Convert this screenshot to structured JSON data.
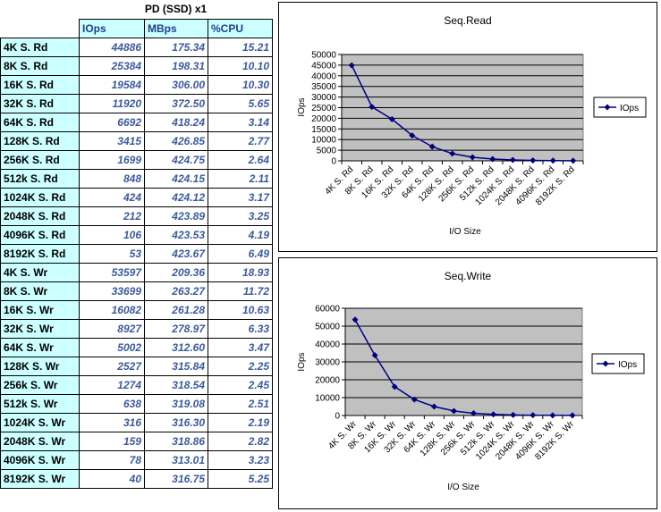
{
  "table": {
    "caption": "PD (SSD) x1",
    "headers": [
      "IOps",
      "MBps",
      "%CPU"
    ],
    "rows": [
      {
        "label": "4K S. Rd",
        "iops": "44886",
        "mbps": "175.34",
        "cpu": "15.21"
      },
      {
        "label": "8K S. Rd",
        "iops": "25384",
        "mbps": "198.31",
        "cpu": "10.10"
      },
      {
        "label": "16K S. Rd",
        "iops": "19584",
        "mbps": "306.00",
        "cpu": "10.30"
      },
      {
        "label": "32K S. Rd",
        "iops": "11920",
        "mbps": "372.50",
        "cpu": "5.65"
      },
      {
        "label": "64K S. Rd",
        "iops": "6692",
        "mbps": "418.24",
        "cpu": "3.14"
      },
      {
        "label": "128K S. Rd",
        "iops": "3415",
        "mbps": "426.85",
        "cpu": "2.77"
      },
      {
        "label": "256K S. Rd",
        "iops": "1699",
        "mbps": "424.75",
        "cpu": "2.64"
      },
      {
        "label": "512k S. Rd",
        "iops": "848",
        "mbps": "424.15",
        "cpu": "2.11"
      },
      {
        "label": "1024K S. Rd",
        "iops": "424",
        "mbps": "424.12",
        "cpu": "3.17"
      },
      {
        "label": "2048K S. Rd",
        "iops": "212",
        "mbps": "423.89",
        "cpu": "3.25"
      },
      {
        "label": "4096K S. Rd",
        "iops": "106",
        "mbps": "423.53",
        "cpu": "4.19"
      },
      {
        "label": "8192K S. Rd",
        "iops": "53",
        "mbps": "423.67",
        "cpu": "6.49"
      },
      {
        "label": "4K S. Wr",
        "iops": "53597",
        "mbps": "209.36",
        "cpu": "18.93"
      },
      {
        "label": "8K S. Wr",
        "iops": "33699",
        "mbps": "263.27",
        "cpu": "11.72"
      },
      {
        "label": "16K S. Wr",
        "iops": "16082",
        "mbps": "261.28",
        "cpu": "10.63"
      },
      {
        "label": "32K S. Wr",
        "iops": "8927",
        "mbps": "278.97",
        "cpu": "6.33"
      },
      {
        "label": "64K S. Wr",
        "iops": "5002",
        "mbps": "312.60",
        "cpu": "3.47"
      },
      {
        "label": "128K S. Wr",
        "iops": "2527",
        "mbps": "315.84",
        "cpu": "2.25"
      },
      {
        "label": "256k S. Wr",
        "iops": "1274",
        "mbps": "318.54",
        "cpu": "2.45"
      },
      {
        "label": "512k S. Wr",
        "iops": "638",
        "mbps": "319.08",
        "cpu": "2.51"
      },
      {
        "label": "1024K S. Wr",
        "iops": "316",
        "mbps": "316.30",
        "cpu": "2.19"
      },
      {
        "label": "2048K S. Wr",
        "iops": "159",
        "mbps": "318.86",
        "cpu": "2.82"
      },
      {
        "label": "4096K S. Wr",
        "iops": "78",
        "mbps": "313.01",
        "cpu": "3.23"
      },
      {
        "label": "8192K S. Wr",
        "iops": "40",
        "mbps": "316.75",
        "cpu": "5.25"
      }
    ]
  },
  "colors": {
    "header_bg": "#ccffff",
    "plot_bg": "#c0c0c0",
    "series": "#000080",
    "number_text": "#3b5b9b"
  },
  "chart_data": [
    {
      "type": "line",
      "title": "Seq.Read",
      "xlabel": "I/O Size",
      "ylabel": "IOps",
      "ylim": [
        0,
        50000
      ],
      "ytick_step": 5000,
      "grid": true,
      "legend_position": "right",
      "categories": [
        "4K S. Rd",
        "8K S. Rd",
        "16K S. Rd",
        "32K S. Rd",
        "64K S. Rd",
        "128K S. Rd",
        "256K S. Rd",
        "512k S. Rd",
        "1024K S. Rd",
        "2048K S. Rd",
        "4096K S. Rd",
        "8192K S. Rd"
      ],
      "category_labels_shown": [
        "4K S. Rd",
        "8K S. Rd",
        "16K S. Rd",
        "32K S. Rd",
        "64K S. Rd",
        "128K S. Rd",
        "256K S. Rd",
        "512k S. Rd",
        "1024K S. Rd",
        "2048K S. Rd",
        "4096K S. Rd",
        "8192K S. Rd"
      ],
      "series": [
        {
          "name": "IOps",
          "values": [
            44886,
            25384,
            19584,
            11920,
            6692,
            3415,
            1699,
            848,
            424,
            212,
            106,
            53
          ]
        }
      ]
    },
    {
      "type": "line",
      "title": "Seq.Write",
      "xlabel": "I/O Size",
      "ylabel": "IOps",
      "ylim": [
        0,
        60000
      ],
      "ytick_step": 10000,
      "grid": true,
      "legend_position": "right",
      "categories": [
        "4K S. Wr",
        "8K S. Wr",
        "16K S. Wr",
        "32K S. Wr",
        "64K S. Wr",
        "128K S. Wr",
        "256k S. Wr",
        "512k S. Wr",
        "1024K S. Wr",
        "2048K S. Wr",
        "4096K S. Wr",
        "8192K S. Wr"
      ],
      "category_labels_shown": [
        "4K S. Wr",
        "8K S. Wr",
        "16K S. Wr",
        "32K S. Wr",
        "64K S. Wr",
        "128K S. Wr",
        "256k S. Wr",
        "512k S. Wr",
        "1024K S. Wr",
        "2048K S. Wr",
        "4096K S. Wr",
        "8192K S. Wr"
      ],
      "series": [
        {
          "name": "IOps",
          "values": [
            53597,
            33699,
            16082,
            8927,
            5002,
            2527,
            1274,
            638,
            316,
            159,
            78,
            40
          ]
        }
      ]
    }
  ]
}
